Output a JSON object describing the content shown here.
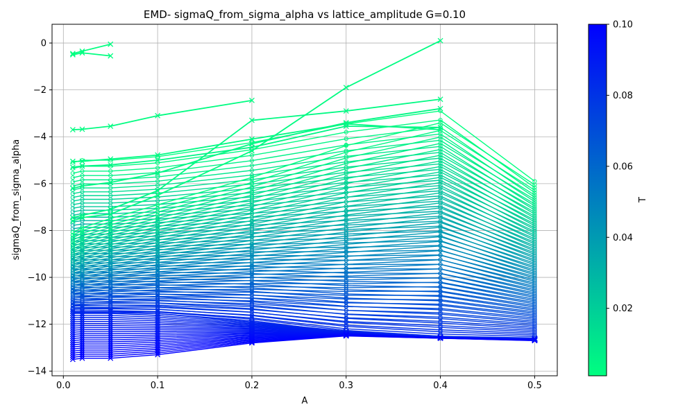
{
  "chart_data": {
    "type": "line",
    "title": "EMD- sigmaQ_from_sigma_alpha vs lattice_amplitude G=0.10",
    "xlabel": "A",
    "ylabel": "sigmaQ_from_sigma_alpha",
    "xlim": [
      -0.012,
      0.524
    ],
    "ylim": [
      -14.2,
      0.8
    ],
    "grid": true,
    "x_ticks": [
      0.0,
      0.1,
      0.2,
      0.3,
      0.4,
      0.5
    ],
    "x_tick_labels": [
      "0.0",
      "0.1",
      "0.2",
      "0.3",
      "0.4",
      "0.5"
    ],
    "y_ticks": [
      0,
      -2,
      -4,
      -6,
      -8,
      -10,
      -12,
      -14
    ],
    "y_tick_labels": [
      "0",
      "−2",
      "−4",
      "−6",
      "−8",
      "−10",
      "−12",
      "−14"
    ],
    "x": [
      0.01,
      0.02,
      0.05,
      0.1,
      0.2,
      0.3,
      0.4,
      0.5
    ],
    "series": [
      {
        "T": 0.001,
        "values": [
          -0.45,
          -0.35,
          -0.05,
          null,
          null,
          null,
          null,
          null
        ]
      },
      {
        "T": 0.001,
        "values": [
          -0.5,
          -0.42,
          -0.55,
          null,
          null,
          null,
          null,
          null
        ]
      },
      {
        "T": 0.002,
        "values": [
          -3.7,
          -3.68,
          -3.55,
          -3.1,
          -2.45,
          null,
          null,
          null
        ]
      },
      {
        "T": 0.002,
        "values": [
          -7.6,
          -7.45,
          -7.3,
          -6.5,
          -4.6,
          -1.9,
          0.1,
          null
        ]
      },
      {
        "T": 0.003,
        "values": [
          -7.45,
          -7.35,
          -7.1,
          -6.3,
          -3.3,
          -2.9,
          -2.4,
          null
        ]
      },
      {
        "T": 0.003,
        "values": [
          -5.05,
          -5.05,
          -4.95,
          -4.78,
          -4.1,
          -3.45,
          -3.7,
          null
        ]
      },
      {
        "T": 0.004,
        "values": [
          -6.2,
          -6.1,
          -5.95,
          -5.55,
          -4.3,
          -3.4,
          -2.8,
          null
        ]
      },
      {
        "T": 0.005,
        "values": [
          -5.3,
          -5.25,
          -5.2,
          -5.0,
          -4.45,
          -3.55,
          -3.6,
          null
        ]
      }
    ],
    "bulk_curves": {
      "count": 90,
      "start_a": [
        -5.1,
        -5.0,
        -5.0,
        -4.85,
        -4.25,
        -3.45,
        -2.9,
        null
      ],
      "start_b": [
        -8.0,
        -7.8,
        -7.4,
        -6.8,
        -5.6,
        -4.2,
        -3.2,
        -5.9
      ],
      "end_values": [
        -11.5,
        -11.5,
        -11.5,
        -11.55,
        -11.85,
        -12.35,
        -12.6,
        -12.65
      ]
    },
    "bottom_cluster": {
      "count": 24,
      "x": [
        0.01,
        0.02,
        0.05,
        0.1,
        0.2,
        0.3,
        0.4,
        0.5
      ],
      "top": [
        -11.45,
        -11.45,
        -11.45,
        -11.55,
        -11.9,
        -12.3,
        -12.55,
        -12.6
      ],
      "bottom": [
        -13.5,
        -13.45,
        -13.45,
        -13.3,
        -12.8,
        -12.5,
        -12.6,
        -12.7
      ]
    },
    "colorbar": {
      "label": "T",
      "min": 0.001,
      "max": 0.1,
      "ticks": [
        0.02,
        0.04,
        0.06,
        0.08,
        0.1
      ],
      "tick_labels": [
        "0.02",
        "0.04",
        "0.06",
        "0.08",
        "0.10"
      ],
      "color_low": "#00ff80",
      "color_high": "#0000ff",
      "colormap": "winter_r"
    }
  }
}
